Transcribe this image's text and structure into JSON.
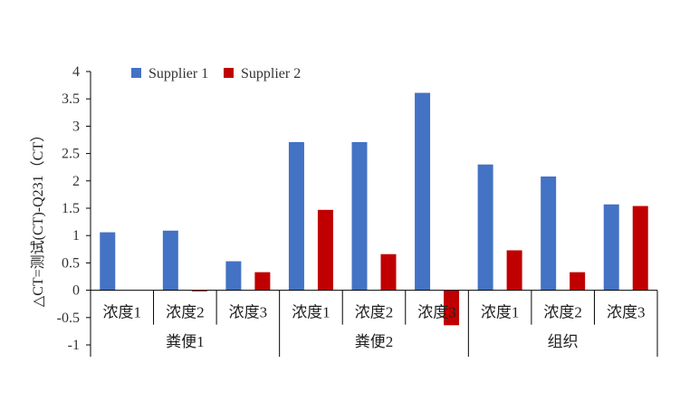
{
  "chart_data": {
    "type": "bar",
    "ylabel": "△CT=测试(CT)-Q231（CT）",
    "ylim": [
      -1,
      4
    ],
    "yticks": [
      "-1",
      "-0.5",
      "0",
      "0.5",
      "1",
      "1.5",
      "2",
      "2.5",
      "3",
      "3.5",
      "4"
    ],
    "grid": false,
    "legend_position": "top-left",
    "categories": [
      "浓度1",
      "浓度2",
      "浓度3",
      "浓度1",
      "浓度2",
      "浓度3",
      "浓度1",
      "浓度2",
      "浓度3"
    ],
    "groups": [
      {
        "label": "粪便1",
        "span": 3
      },
      {
        "label": "粪便2",
        "span": 3
      },
      {
        "label": "组织",
        "span": 3
      }
    ],
    "series": [
      {
        "name": "Supplier 1",
        "color": "#4472C4",
        "values": [
          1.06,
          1.09,
          0.53,
          2.71,
          2.71,
          3.61,
          2.3,
          2.08,
          1.57
        ]
      },
      {
        "name": "Supplier 2",
        "color": "#C00000",
        "values": [
          0.0,
          -0.02,
          0.33,
          1.47,
          0.66,
          -0.64,
          0.73,
          0.33,
          1.54
        ]
      }
    ]
  }
}
